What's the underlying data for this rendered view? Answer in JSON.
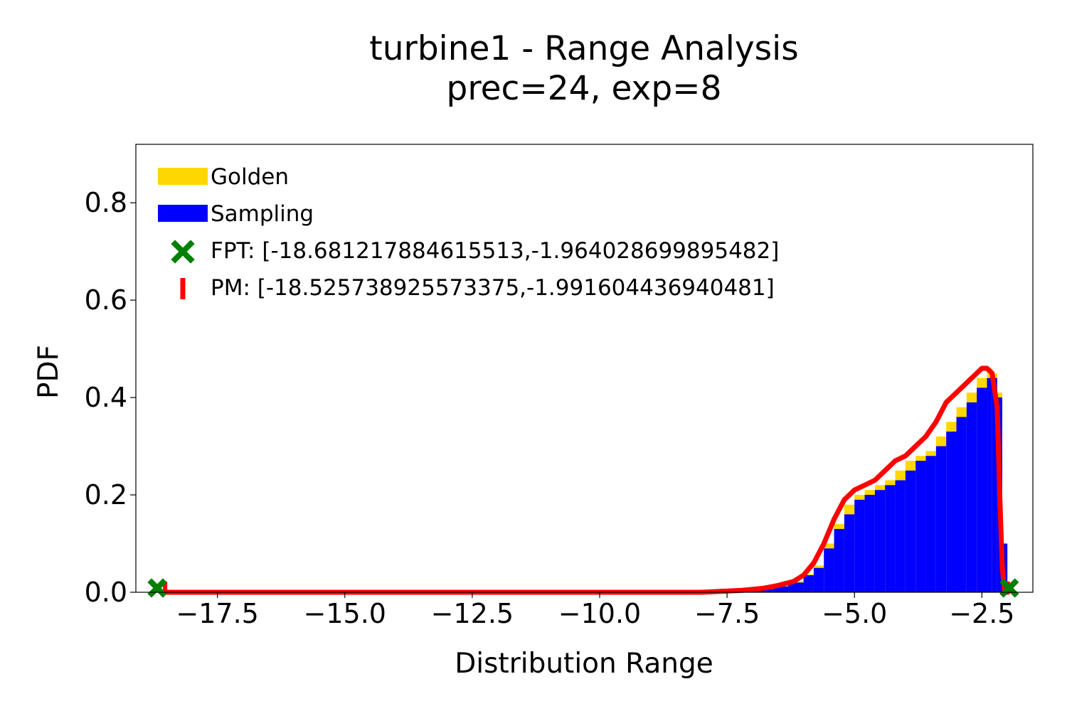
{
  "chart_data": {
    "type": "histogram",
    "title_line1": "turbine1 - Range Analysis",
    "title_line2": "prec=24, exp=8",
    "xlabel": "Distribution Range",
    "ylabel": "PDF",
    "xlim": [
      -19.1,
      -1.5
    ],
    "ylim": [
      0.0,
      0.92
    ],
    "xticks": [
      -17.5,
      -15.0,
      -12.5,
      -10.0,
      -7.5,
      -5.0,
      -2.5
    ],
    "xtick_labels": [
      "−17.5",
      "−15.0",
      "−12.5",
      "−10.0",
      "−7.5",
      "−5.0",
      "−2.5"
    ],
    "yticks": [
      0.0,
      0.2,
      0.4,
      0.6,
      0.8
    ],
    "ytick_labels": [
      "0.0",
      "0.2",
      "0.4",
      "0.6",
      "0.8"
    ],
    "grid": false,
    "legend_position": "upper-left",
    "legend": [
      {
        "label": "Golden",
        "kind": "bar",
        "color": "#FFD700"
      },
      {
        "label": "Sampling",
        "kind": "bar",
        "color": "#0000FF"
      },
      {
        "label": "FPT: [-18.681217884615513,-1.964028699895482]",
        "kind": "x-marker",
        "color": "#008000"
      },
      {
        "label": "PM: [-18.525738925573375,-1.991604436940481]",
        "kind": "vline-marker",
        "color": "#FF0000"
      }
    ],
    "fpt_range": [
      -18.681217884615513,
      -1.964028699895482
    ],
    "pm_range": [
      -18.525738925573375,
      -1.991604436940481
    ],
    "series": [
      {
        "name": "Sampling",
        "color": "#0000FF",
        "x": [
          -7.4,
          -7.0,
          -6.6,
          -6.3,
          -6.0,
          -5.8,
          -5.6,
          -5.4,
          -5.2,
          -5.0,
          -4.8,
          -4.6,
          -4.4,
          -4.2,
          -4.0,
          -3.8,
          -3.6,
          -3.4,
          -3.2,
          -3.0,
          -2.8,
          -2.6,
          -2.4,
          -2.3,
          -2.2,
          -2.1,
          -2.0
        ],
        "values": [
          0.003,
          0.006,
          0.012,
          0.02,
          0.035,
          0.05,
          0.09,
          0.13,
          0.16,
          0.19,
          0.2,
          0.21,
          0.22,
          0.23,
          0.25,
          0.27,
          0.28,
          0.3,
          0.33,
          0.36,
          0.39,
          0.42,
          0.44,
          0.44,
          0.4,
          0.1,
          0.0
        ]
      },
      {
        "name": "Golden",
        "color": "#FFD700",
        "x": [
          -7.4,
          -7.0,
          -6.6,
          -6.3,
          -6.0,
          -5.8,
          -5.6,
          -5.4,
          -5.2,
          -5.0,
          -4.8,
          -4.6,
          -4.4,
          -4.2,
          -4.0,
          -3.8,
          -3.6,
          -3.4,
          -3.2,
          -3.0,
          -2.8,
          -2.6,
          -2.4,
          -2.3,
          -2.2,
          -2.1,
          -2.0
        ],
        "values": [
          0.004,
          0.007,
          0.013,
          0.022,
          0.037,
          0.055,
          0.1,
          0.14,
          0.18,
          0.2,
          0.21,
          0.22,
          0.23,
          0.25,
          0.27,
          0.28,
          0.29,
          0.32,
          0.35,
          0.38,
          0.41,
          0.44,
          0.46,
          0.45,
          0.41,
          0.1,
          0.0
        ]
      },
      {
        "name": "PM",
        "color": "#FF0000",
        "type": "line",
        "x": [
          -18.5,
          -8.0,
          -7.6,
          -7.2,
          -6.8,
          -6.5,
          -6.2,
          -6.0,
          -5.8,
          -5.6,
          -5.4,
          -5.2,
          -5.0,
          -4.8,
          -4.6,
          -4.4,
          -4.2,
          -4.0,
          -3.8,
          -3.6,
          -3.4,
          -3.2,
          -3.0,
          -2.8,
          -2.6,
          -2.5,
          -2.4,
          -2.3,
          -2.2,
          -2.15,
          -2.1,
          -2.05,
          -2.0,
          -1.99
        ],
        "values": [
          0.0,
          0.0,
          0.002,
          0.004,
          0.008,
          0.014,
          0.022,
          0.035,
          0.06,
          0.1,
          0.15,
          0.19,
          0.21,
          0.22,
          0.23,
          0.25,
          0.27,
          0.28,
          0.3,
          0.32,
          0.35,
          0.39,
          0.41,
          0.43,
          0.45,
          0.46,
          0.46,
          0.45,
          0.38,
          0.2,
          0.05,
          0.0,
          0.0,
          0.0
        ]
      }
    ]
  }
}
